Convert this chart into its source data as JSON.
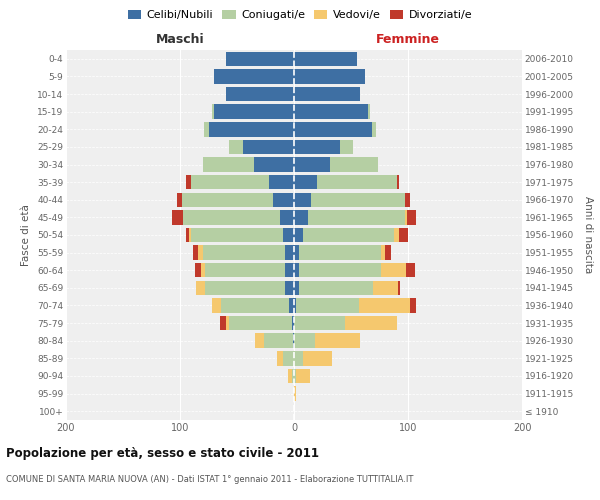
{
  "age_groups": [
    "100+",
    "95-99",
    "90-94",
    "85-89",
    "80-84",
    "75-79",
    "70-74",
    "65-69",
    "60-64",
    "55-59",
    "50-54",
    "45-49",
    "40-44",
    "35-39",
    "30-34",
    "25-29",
    "20-24",
    "15-19",
    "10-14",
    "5-9",
    "0-4"
  ],
  "birth_years": [
    "≤ 1910",
    "1911-1915",
    "1916-1920",
    "1921-1925",
    "1926-1930",
    "1931-1935",
    "1936-1940",
    "1941-1945",
    "1946-1950",
    "1951-1955",
    "1956-1960",
    "1961-1965",
    "1966-1970",
    "1971-1975",
    "1976-1980",
    "1981-1985",
    "1986-1990",
    "1991-1995",
    "1996-2000",
    "2001-2005",
    "2006-2010"
  ],
  "maschi": {
    "celibi": [
      0,
      0,
      0,
      0,
      1,
      2,
      4,
      8,
      8,
      8,
      10,
      12,
      18,
      22,
      35,
      45,
      75,
      70,
      60,
      70,
      60
    ],
    "coniugati": [
      0,
      0,
      2,
      10,
      25,
      55,
      60,
      70,
      70,
      72,
      80,
      85,
      80,
      68,
      45,
      12,
      4,
      2,
      0,
      0,
      0
    ],
    "vedovi": [
      0,
      0,
      3,
      5,
      8,
      3,
      8,
      8,
      4,
      4,
      2,
      0,
      0,
      0,
      0,
      0,
      0,
      0,
      0,
      0,
      0
    ],
    "divorziati": [
      0,
      0,
      0,
      0,
      0,
      5,
      0,
      0,
      5,
      5,
      3,
      10,
      5,
      5,
      0,
      0,
      0,
      0,
      0,
      0,
      0
    ]
  },
  "femmine": {
    "nubili": [
      0,
      0,
      0,
      0,
      0,
      0,
      2,
      4,
      4,
      4,
      8,
      12,
      15,
      20,
      32,
      40,
      68,
      65,
      58,
      62,
      55
    ],
    "coniugate": [
      0,
      0,
      2,
      8,
      18,
      45,
      55,
      65,
      72,
      72,
      80,
      85,
      82,
      70,
      42,
      12,
      4,
      2,
      0,
      0,
      0
    ],
    "vedove": [
      0,
      2,
      12,
      25,
      40,
      45,
      45,
      22,
      22,
      4,
      4,
      2,
      0,
      0,
      0,
      0,
      0,
      0,
      0,
      0,
      0
    ],
    "divorziate": [
      0,
      0,
      0,
      0,
      0,
      0,
      5,
      2,
      8,
      5,
      8,
      8,
      5,
      2,
      0,
      0,
      0,
      0,
      0,
      0,
      0
    ]
  },
  "colors": {
    "celibi": "#3e6fa3",
    "coniugati": "#b5cfa3",
    "vedovi": "#f5c86e",
    "divorziati": "#c0392b"
  },
  "xlim": 200,
  "title": "Popolazione per età, sesso e stato civile - 2011",
  "subtitle": "COMUNE DI SANTA MARIA NUOVA (AN) - Dati ISTAT 1° gennaio 2011 - Elaborazione TUTTITALIA.IT",
  "ylabel_left": "Fasce di età",
  "ylabel_right": "Anni di nascita",
  "xlabel_maschi": "Maschi",
  "xlabel_femmine": "Femmine",
  "legend_labels": [
    "Celibi/Nubili",
    "Coniugati/e",
    "Vedovi/e",
    "Divorziati/e"
  ],
  "bg_color": "#ffffff",
  "plot_bg": "#efefef"
}
